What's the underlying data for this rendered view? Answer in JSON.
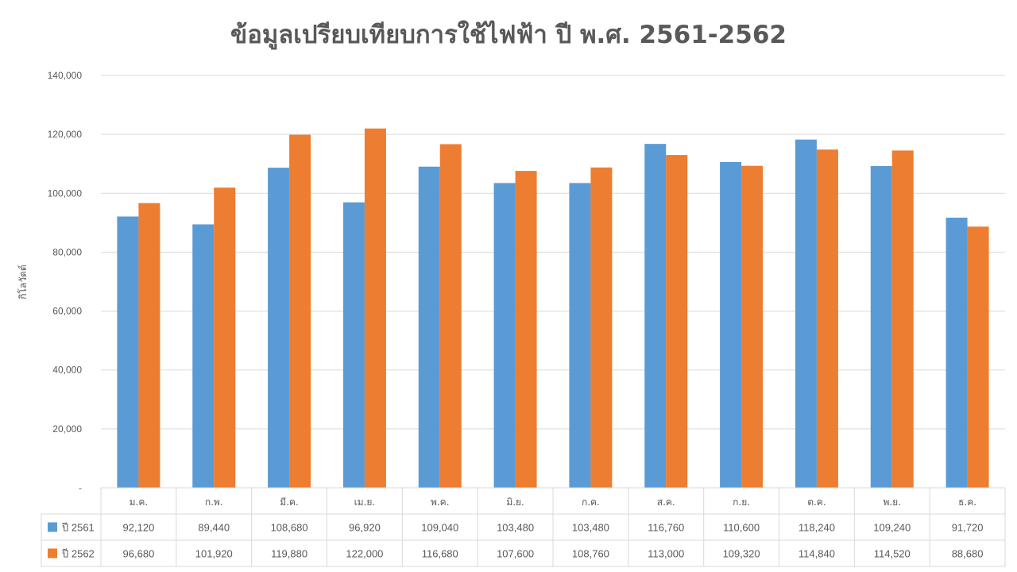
{
  "chart_data": {
    "type": "bar",
    "title": "ข้อมูลเปรียบเทียบการใช้ไฟฟ้า ปี พ.ศ. 2561-2562",
    "ylabel": "กิโลวัตต์",
    "ylim": [
      0,
      140000
    ],
    "yticks": [
      {
        "value": 0,
        "label": "-"
      },
      {
        "value": 20000,
        "label": "20,000"
      },
      {
        "value": 40000,
        "label": "40,000"
      },
      {
        "value": 60000,
        "label": "60,000"
      },
      {
        "value": 80000,
        "label": "80,000"
      },
      {
        "value": 100000,
        "label": "100,000"
      },
      {
        "value": 120000,
        "label": "120,000"
      },
      {
        "value": 140000,
        "label": "140,000"
      }
    ],
    "grid": true,
    "legend": "data-table",
    "categories": [
      "ม.ค.",
      "ก.พ.",
      "มี.ค.",
      "เม.ย.",
      "พ.ค.",
      "มิ.ย.",
      "ก.ค.",
      "ส.ค.",
      "ก.ย.",
      "ต.ค.",
      "พ.ย.",
      "ธ.ค."
    ],
    "series": [
      {
        "name": "ปี 2561",
        "color": "#5B9BD5",
        "values": [
          92120,
          89440,
          108680,
          96920,
          109040,
          103480,
          103480,
          116760,
          110600,
          118240,
          109240,
          91720
        ],
        "labels": [
          "92,120",
          "89,440",
          "108,680",
          "96,920",
          "109,040",
          "103,480",
          "103,480",
          "116,760",
          "110,600",
          "118,240",
          "109,240",
          "91,720"
        ]
      },
      {
        "name": "ปี 2562",
        "color": "#ED7D31",
        "values": [
          96680,
          101920,
          119880,
          122000,
          116680,
          107600,
          108760,
          113000,
          109320,
          114840,
          114520,
          88680
        ],
        "labels": [
          "96,680",
          "101,920",
          "119,880",
          "122,000",
          "116,680",
          "107,600",
          "108,760",
          "113,000",
          "109,320",
          "114,840",
          "114,520",
          "88,680"
        ]
      }
    ]
  }
}
